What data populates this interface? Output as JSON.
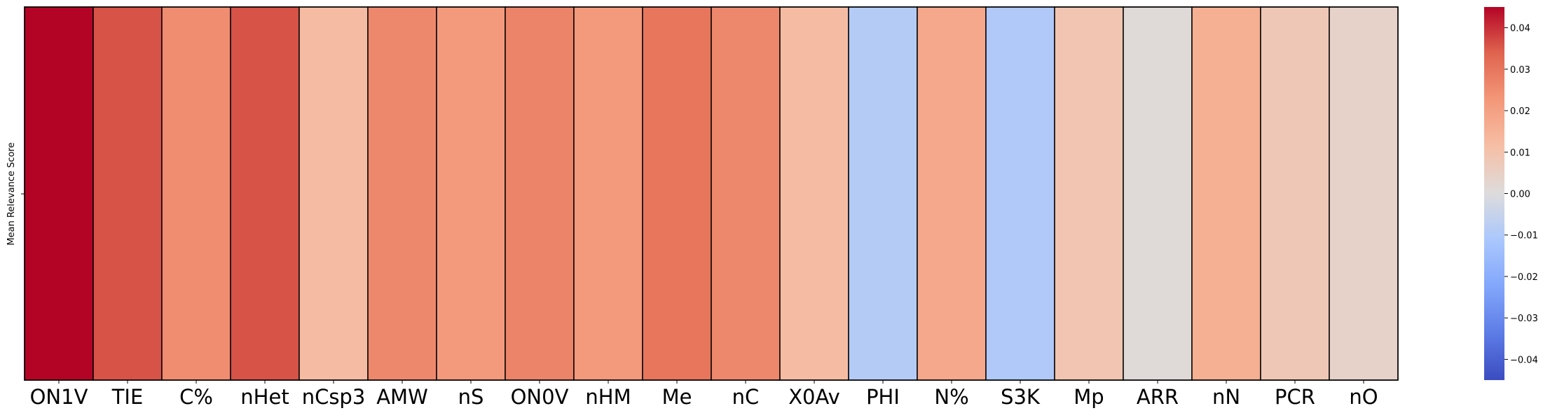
{
  "chart_data": {
    "type": "heatmap",
    "ylabel": "Mean Relevance Score",
    "categories": [
      "ON1V",
      "TIE",
      "C%",
      "nHet",
      "nCsp3",
      "AMW",
      "nS",
      "ON0V",
      "nHM",
      "Me",
      "nC",
      "X0Av",
      "PHI",
      "N%",
      "S3K",
      "Mp",
      "ARR",
      "nN",
      "PCR",
      "nO"
    ],
    "values": [
      0.045,
      0.036,
      0.025,
      0.036,
      0.012,
      0.026,
      0.022,
      0.027,
      0.022,
      0.03,
      0.026,
      0.012,
      -0.009,
      0.018,
      -0.01,
      0.009,
      0.001,
      0.016,
      0.008,
      0.004
    ],
    "colorbar": {
      "range": [
        -0.045,
        0.045
      ],
      "ticks": [
        -0.04,
        -0.03,
        -0.02,
        -0.01,
        0.0,
        0.01,
        0.02,
        0.03,
        0.04
      ],
      "tick_labels": [
        "−0.04",
        "−0.03",
        "−0.02",
        "−0.01",
        "0.00",
        "0.01",
        "0.02",
        "0.03",
        "0.04"
      ],
      "colormap": "coolwarm"
    },
    "grid": false,
    "cell_borders": true
  }
}
